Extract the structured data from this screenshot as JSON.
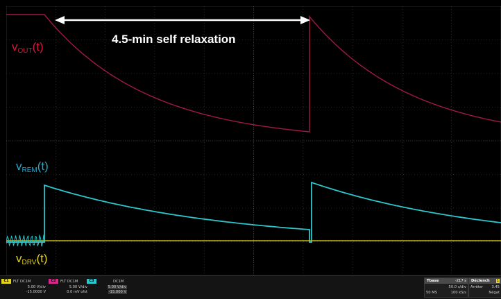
{
  "annotation": {
    "text": "4.5-min self relaxation"
  },
  "traces": {
    "vout": {
      "label_base": "v",
      "label_sub": "OUT",
      "label_tail": "(t)",
      "color": "#cc1b3e",
      "trace_color": "#a0184a"
    },
    "vrem": {
      "label_base": "v",
      "label_sub": "REM",
      "label_tail": "(t)",
      "color": "#29a7c9",
      "trace_color": "#2cc7cc"
    },
    "vdrv": {
      "label_base": "v",
      "label_sub": "DRV",
      "label_tail": "(t)",
      "color": "#e0d21c",
      "trace_color": "#c9b81a"
    }
  },
  "channels": [
    {
      "tag": "C1",
      "tag_color": "#e5d51f",
      "header": "FLT  DC1M",
      "scale": "5.00 V/div",
      "offset": "-15.0000 V"
    },
    {
      "tag": "C2",
      "tag_color": "#d62a8a",
      "header": "FLT  DC1M",
      "scale": "5.00 V/div",
      "offset": "0.0 mV ofst"
    },
    {
      "tag": "C3",
      "tag_color": "#2cc7cc",
      "header": "DC1M",
      "scale": "5.00 V/div",
      "offset": "-15.000 V"
    }
  ],
  "timebase": {
    "title": "Tbase",
    "delay": "-217 s",
    "div": "50.0 s/div",
    "samples": "50 MS",
    "rate": "100 kS/s"
  },
  "trigger": {
    "title": "Déclench",
    "tag": "1",
    "mode": "Arrêter",
    "level": "3.45",
    "slope": "Négat"
  },
  "colors": {
    "grid": "#4a4a4a",
    "annotation": "#ffffff"
  }
}
